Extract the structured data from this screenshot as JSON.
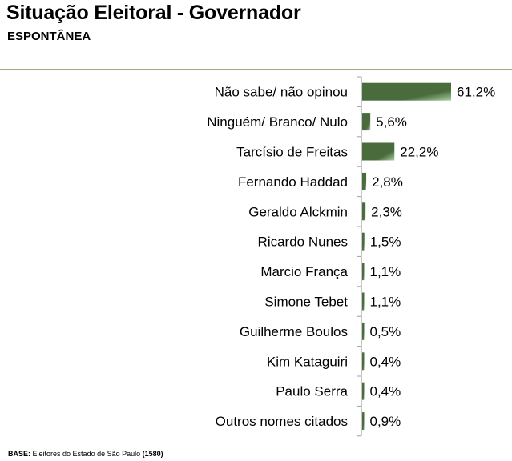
{
  "title": "Situação Eleitoral - Governador",
  "subtitle": "ESPONTÂNEA",
  "base": {
    "label": "BASE:",
    "text": "Eleitores do Estado de São Paulo",
    "n": "(1580)"
  },
  "colors": {
    "bar_dark": "#4a6b3c",
    "bar_light": "#9cc49a",
    "rule": "#9aab84",
    "axis": "#a0a0a0"
  },
  "chart_data": {
    "type": "bar",
    "orientation": "horizontal",
    "title": "Situação Eleitoral - Governador",
    "subtitle": "ESPONTÂNEA",
    "categories": [
      "Não sabe/ não opinou",
      "Ninguém/ Branco/ Nulo",
      "Tarcísio de Freitas",
      "Fernando Haddad",
      "Geraldo Alckmin",
      "Ricardo Nunes",
      "Marcio França",
      "Simone Tebet",
      "Guilherme Boulos",
      "Kim Kataguiri",
      "Paulo Serra",
      "Outros nomes citados"
    ],
    "values": [
      61.2,
      5.6,
      22.2,
      2.8,
      2.3,
      1.5,
      1.1,
      1.1,
      0.5,
      0.4,
      0.4,
      0.9
    ],
    "labels": [
      "61,2%",
      "5,6%",
      "22,2%",
      "2,8%",
      "2,3%",
      "1,5%",
      "1,1%",
      "1,1%",
      "0,5%",
      "0,4%",
      "0,4%",
      "0,9%"
    ],
    "unit": "%",
    "xlim": [
      0,
      61.2
    ],
    "grid": false,
    "legend": "none"
  }
}
